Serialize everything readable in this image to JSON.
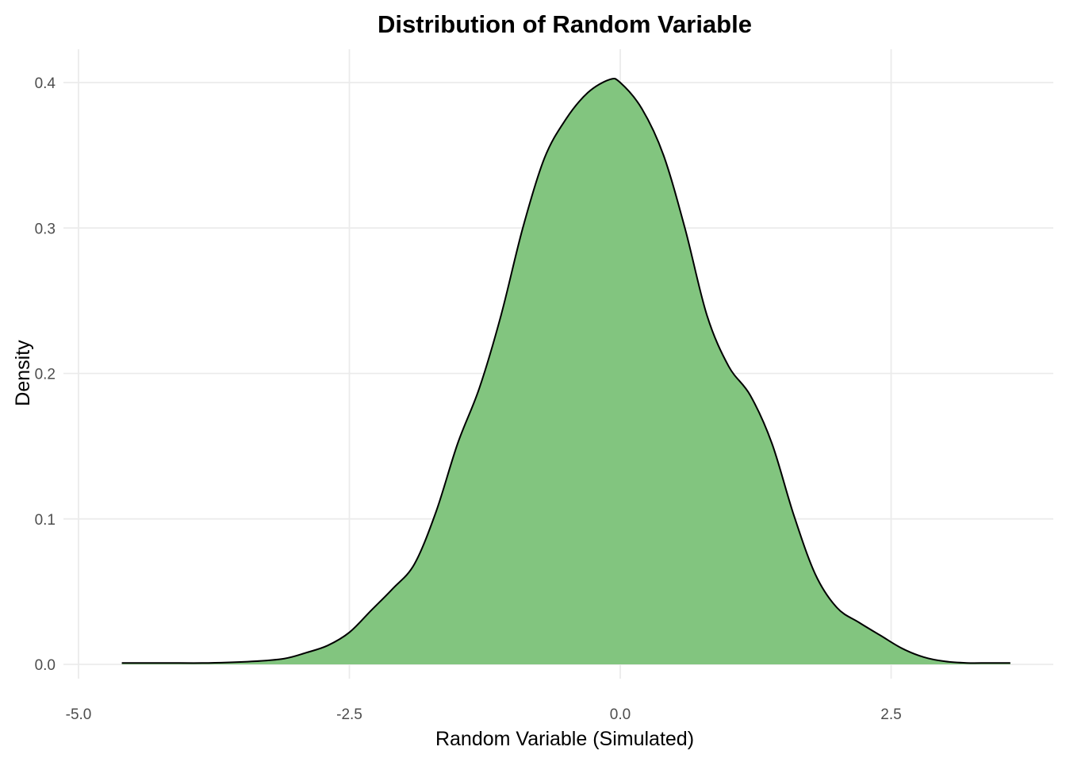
{
  "chart_data": {
    "type": "area",
    "title": "Distribution of Random Variable",
    "xlabel": "Random Variable (Simulated)",
    "ylabel": "Density",
    "xlim": [
      -5.0,
      3.8
    ],
    "ylim": [
      0,
      0.42
    ],
    "x_ticks": [
      -5.0,
      -2.5,
      0.0,
      2.5
    ],
    "x_tick_labels": [
      "-5.0",
      "-2.5",
      "0.0",
      "2.5"
    ],
    "y_ticks": [
      0.0,
      0.1,
      0.2,
      0.3,
      0.4
    ],
    "y_tick_labels": [
      "0.0",
      "0.1",
      "0.2",
      "0.3",
      "0.4"
    ],
    "grid": true,
    "legend": "none",
    "fill_color": "#82c57f",
    "line_color": "#000000",
    "x": [
      -4.6,
      -4.2,
      -3.8,
      -3.4,
      -3.1,
      -2.9,
      -2.7,
      -2.5,
      -2.3,
      -2.1,
      -1.9,
      -1.7,
      -1.5,
      -1.3,
      -1.1,
      -0.9,
      -0.7,
      -0.5,
      -0.3,
      -0.1,
      0.0,
      0.2,
      0.4,
      0.6,
      0.8,
      1.0,
      1.2,
      1.4,
      1.6,
      1.8,
      2.0,
      2.2,
      2.4,
      2.6,
      2.8,
      3.0,
      3.2,
      3.4,
      3.6
    ],
    "y": [
      0.001,
      0.001,
      0.001,
      0.002,
      0.004,
      0.008,
      0.013,
      0.022,
      0.037,
      0.052,
      0.069,
      0.105,
      0.152,
      0.19,
      0.24,
      0.3,
      0.348,
      0.375,
      0.393,
      0.402,
      0.4,
      0.382,
      0.35,
      0.299,
      0.24,
      0.205,
      0.185,
      0.152,
      0.103,
      0.062,
      0.039,
      0.029,
      0.02,
      0.011,
      0.005,
      0.002,
      0.001,
      0.001,
      0.001
    ]
  }
}
